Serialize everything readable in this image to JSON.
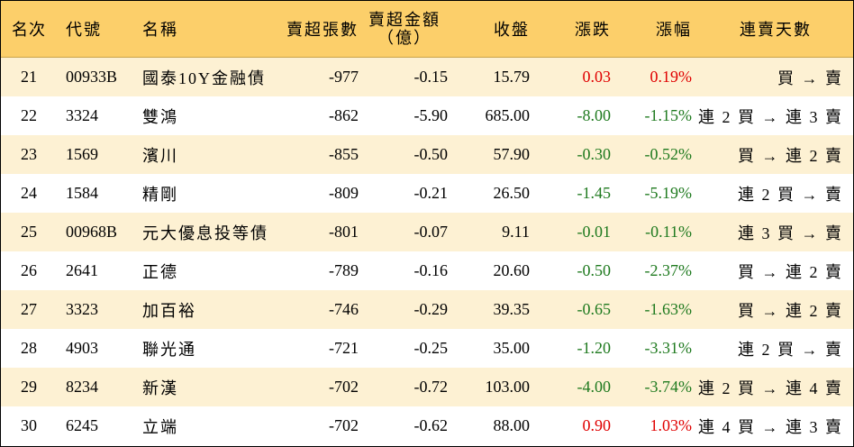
{
  "headers": {
    "rank": "名次",
    "code": "代號",
    "name": "名稱",
    "shares": "賣超張數",
    "amount_line1": "賣超金額",
    "amount_line2": "（億）",
    "close": "收盤",
    "change": "漲跌",
    "pct": "漲幅",
    "days": "連賣天數"
  },
  "colors": {
    "header_bg": "#fccf6a",
    "stripe_bg": "#fdf1d3",
    "up": "#e00000",
    "down": "#1f7a1f"
  },
  "rows": [
    {
      "rank": "21",
      "code": "00933B",
      "name": "國泰10Y金融債",
      "shares": "-977",
      "amount": "-0.15",
      "close": "15.79",
      "change": "0.03",
      "pct": "0.19%",
      "days": "買 → 賣",
      "dir": "up"
    },
    {
      "rank": "22",
      "code": "3324",
      "name": "雙鴻",
      "shares": "-862",
      "amount": "-5.90",
      "close": "685.00",
      "change": "-8.00",
      "pct": "-1.15%",
      "days": "連 2 買 → 連 3 賣",
      "dir": "down"
    },
    {
      "rank": "23",
      "code": "1569",
      "name": "濱川",
      "shares": "-855",
      "amount": "-0.50",
      "close": "57.90",
      "change": "-0.30",
      "pct": "-0.52%",
      "days": "買 → 連 2 賣",
      "dir": "down"
    },
    {
      "rank": "24",
      "code": "1584",
      "name": "精剛",
      "shares": "-809",
      "amount": "-0.21",
      "close": "26.50",
      "change": "-1.45",
      "pct": "-5.19%",
      "days": "連 2 買 → 賣",
      "dir": "down"
    },
    {
      "rank": "25",
      "code": "00968B",
      "name": "元大優息投等債",
      "shares": "-801",
      "amount": "-0.07",
      "close": "9.11",
      "change": "-0.01",
      "pct": "-0.11%",
      "days": "連 3 買 → 賣",
      "dir": "down"
    },
    {
      "rank": "26",
      "code": "2641",
      "name": "正德",
      "shares": "-789",
      "amount": "-0.16",
      "close": "20.60",
      "change": "-0.50",
      "pct": "-2.37%",
      "days": "買 → 連 2 賣",
      "dir": "down"
    },
    {
      "rank": "27",
      "code": "3323",
      "name": "加百裕",
      "shares": "-746",
      "amount": "-0.29",
      "close": "39.35",
      "change": "-0.65",
      "pct": "-1.63%",
      "days": "買 → 連 2 賣",
      "dir": "down"
    },
    {
      "rank": "28",
      "code": "4903",
      "name": "聯光通",
      "shares": "-721",
      "amount": "-0.25",
      "close": "35.00",
      "change": "-1.20",
      "pct": "-3.31%",
      "days": "連 2 買 → 賣",
      "dir": "down"
    },
    {
      "rank": "29",
      "code": "8234",
      "name": "新漢",
      "shares": "-702",
      "amount": "-0.72",
      "close": "103.00",
      "change": "-4.00",
      "pct": "-3.74%",
      "days": "連 2 買 → 連 4 賣",
      "dir": "down"
    },
    {
      "rank": "30",
      "code": "6245",
      "name": "立端",
      "shares": "-702",
      "amount": "-0.62",
      "close": "88.00",
      "change": "0.90",
      "pct": "1.03%",
      "days": "連 4 買 → 連 3 賣",
      "dir": "up"
    }
  ]
}
